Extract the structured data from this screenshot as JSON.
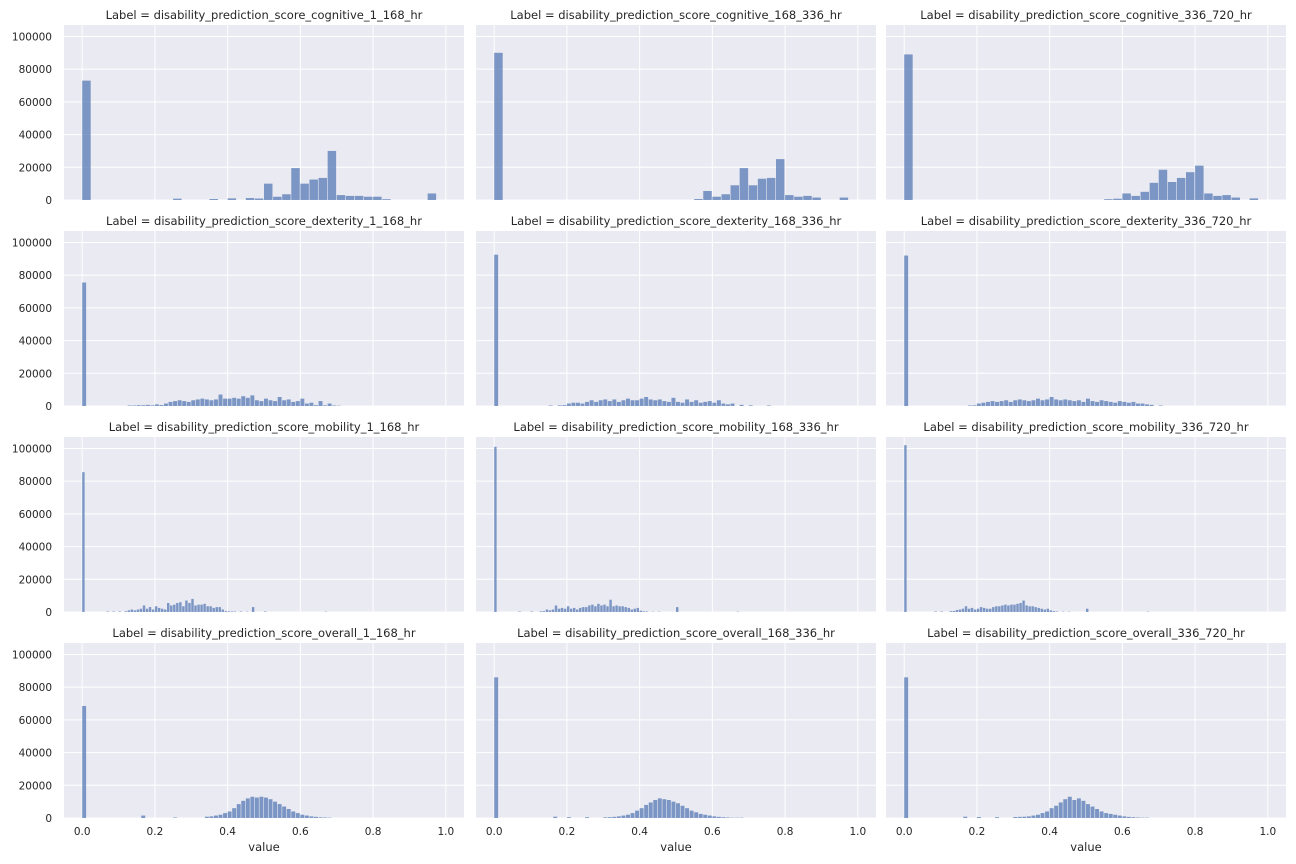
{
  "figure": {
    "facet_background": "#eaeaf2",
    "grid_color": "#ffffff",
    "bar_color": "#4c72b0",
    "bar_alpha": 0.7,
    "grid": true
  },
  "chart_data": [
    {
      "type": "bar",
      "title": "Label = disability_prediction_score_cognitive_1_168_hr",
      "xlabel": "",
      "ylabel": "",
      "xlim": [
        -0.05,
        1.05
      ],
      "ylim": [
        0,
        107000
      ],
      "xticks": [
        0.0,
        0.2,
        0.4,
        0.6,
        0.8,
        1.0
      ],
      "yticks": [
        0,
        20000,
        40000,
        60000,
        80000,
        100000
      ],
      "bin_width": 0.025,
      "x": [
        0.0,
        0.25,
        0.3,
        0.35,
        0.4,
        0.45,
        0.475,
        0.5,
        0.525,
        0.55,
        0.575,
        0.6,
        0.625,
        0.65,
        0.675,
        0.7,
        0.725,
        0.75,
        0.775,
        0.8,
        0.825,
        0.85,
        0.875,
        0.9,
        0.95
      ],
      "values": [
        73000,
        800,
        0,
        600,
        1000,
        1200,
        900,
        10000,
        2000,
        3500,
        19500,
        10000,
        12500,
        13500,
        30000,
        3000,
        2500,
        2500,
        2000,
        2000,
        500,
        0,
        0,
        0,
        4000
      ]
    },
    {
      "type": "bar",
      "title": "Label = disability_prediction_score_cognitive_168_336_hr",
      "xlabel": "",
      "ylabel": "",
      "xlim": [
        -0.05,
        1.05
      ],
      "ylim": [
        0,
        107000
      ],
      "xticks": [
        0.0,
        0.2,
        0.4,
        0.6,
        0.8,
        1.0
      ],
      "yticks": [
        0,
        20000,
        40000,
        60000,
        80000,
        100000
      ],
      "bin_width": 0.025,
      "x": [
        0.0,
        0.55,
        0.575,
        0.6,
        0.625,
        0.65,
        0.675,
        0.7,
        0.725,
        0.75,
        0.775,
        0.8,
        0.825,
        0.85,
        0.875,
        0.9,
        0.95
      ],
      "values": [
        90000,
        600,
        5500,
        2000,
        3500,
        9000,
        19500,
        9000,
        13000,
        13500,
        25000,
        3000,
        2000,
        2500,
        1500,
        0,
        1500
      ]
    },
    {
      "type": "bar",
      "title": "Label = disability_prediction_score_cognitive_336_720_hr",
      "xlabel": "",
      "ylabel": "",
      "xlim": [
        -0.05,
        1.05
      ],
      "ylim": [
        0,
        107000
      ],
      "xticks": [
        0.0,
        0.2,
        0.4,
        0.6,
        0.8,
        1.0
      ],
      "yticks": [
        0,
        20000,
        40000,
        60000,
        80000,
        100000
      ],
      "bin_width": 0.025,
      "x": [
        0.0,
        0.55,
        0.575,
        0.6,
        0.625,
        0.65,
        0.675,
        0.7,
        0.725,
        0.75,
        0.775,
        0.8,
        0.825,
        0.85,
        0.875,
        0.9,
        0.95
      ],
      "values": [
        89000,
        500,
        800,
        4000,
        2500,
        5000,
        10500,
        18500,
        11000,
        13500,
        17000,
        21000,
        4000,
        2500,
        3000,
        1500,
        1000
      ]
    },
    {
      "type": "bar",
      "title": "Label = disability_prediction_score_dexterity_1_168_hr",
      "xlabel": "",
      "ylabel": "",
      "xlim": [
        -0.05,
        1.05
      ],
      "ylim": [
        0,
        107000
      ],
      "xticks": [
        0.0,
        0.2,
        0.4,
        0.6,
        0.8,
        1.0
      ],
      "yticks": [
        0,
        20000,
        40000,
        60000,
        80000,
        100000
      ],
      "bin_width": 0.0125,
      "x": [
        0.0,
        0.125,
        0.1375,
        0.15,
        0.1625,
        0.175,
        0.1875,
        0.2,
        0.2125,
        0.225,
        0.2375,
        0.25,
        0.2625,
        0.275,
        0.2875,
        0.3,
        0.3125,
        0.325,
        0.3375,
        0.35,
        0.3625,
        0.375,
        0.3875,
        0.4,
        0.4125,
        0.425,
        0.4375,
        0.45,
        0.4625,
        0.475,
        0.4875,
        0.5,
        0.5125,
        0.525,
        0.5375,
        0.55,
        0.5625,
        0.575,
        0.5875,
        0.6,
        0.6125,
        0.625,
        0.6375,
        0.65,
        0.6625,
        0.675,
        0.6875,
        0.7
      ],
      "values": [
        75500,
        300,
        300,
        500,
        500,
        700,
        400,
        1000,
        600,
        1500,
        2500,
        3000,
        3500,
        3000,
        2500,
        3500,
        4000,
        4500,
        4000,
        3500,
        4000,
        7000,
        4500,
        4500,
        5000,
        4500,
        6000,
        5000,
        6500,
        3500,
        3000,
        4500,
        3500,
        3000,
        5500,
        3500,
        4000,
        2500,
        3000,
        4500,
        1500,
        2000,
        500,
        3000,
        400,
        1500,
        300,
        200
      ]
    },
    {
      "type": "bar",
      "title": "Label = disability_prediction_score_dexterity_168_336_hr",
      "xlabel": "",
      "ylabel": "",
      "xlim": [
        -0.05,
        1.05
      ],
      "ylim": [
        0,
        107000
      ],
      "xticks": [
        0.0,
        0.2,
        0.4,
        0.6,
        0.8,
        1.0
      ],
      "yticks": [
        0,
        20000,
        40000,
        60000,
        80000,
        100000
      ],
      "bin_width": 0.0125,
      "x": [
        0.0,
        0.15,
        0.175,
        0.1875,
        0.2,
        0.2125,
        0.225,
        0.2375,
        0.25,
        0.2625,
        0.275,
        0.2875,
        0.3,
        0.3125,
        0.325,
        0.3375,
        0.35,
        0.3625,
        0.375,
        0.3875,
        0.4,
        0.4125,
        0.425,
        0.4375,
        0.45,
        0.4625,
        0.475,
        0.4875,
        0.5,
        0.5125,
        0.525,
        0.5375,
        0.55,
        0.5625,
        0.575,
        0.5875,
        0.6,
        0.6125,
        0.625,
        0.6375,
        0.65,
        0.675,
        0.7,
        0.75
      ],
      "values": [
        92500,
        300,
        400,
        500,
        1500,
        2000,
        2000,
        1500,
        2500,
        3500,
        2500,
        3500,
        4000,
        3000,
        4000,
        2500,
        3500,
        4500,
        3500,
        3500,
        4500,
        5500,
        4000,
        3500,
        4000,
        3000,
        2500,
        5000,
        2500,
        2000,
        4000,
        2500,
        3500,
        2000,
        2500,
        3000,
        2000,
        3500,
        1500,
        1000,
        1500,
        700,
        400,
        300
      ]
    },
    {
      "type": "bar",
      "title": "Label = disability_prediction_score_dexterity_336_720_hr",
      "xlabel": "",
      "ylabel": "",
      "xlim": [
        -0.05,
        1.05
      ],
      "ylim": [
        0,
        107000
      ],
      "xticks": [
        0.0,
        0.2,
        0.4,
        0.6,
        0.8,
        1.0
      ],
      "yticks": [
        0,
        20000,
        40000,
        60000,
        80000,
        100000
      ],
      "bin_width": 0.0125,
      "x": [
        0.0,
        0.175,
        0.1875,
        0.2,
        0.2125,
        0.225,
        0.2375,
        0.25,
        0.2625,
        0.275,
        0.2875,
        0.3,
        0.3125,
        0.325,
        0.3375,
        0.35,
        0.3625,
        0.375,
        0.3875,
        0.4,
        0.4125,
        0.425,
        0.4375,
        0.45,
        0.4625,
        0.475,
        0.4875,
        0.5,
        0.5125,
        0.525,
        0.5375,
        0.55,
        0.5625,
        0.575,
        0.5875,
        0.6,
        0.6125,
        0.625,
        0.6375,
        0.65,
        0.6625,
        0.675,
        0.7
      ],
      "values": [
        92000,
        300,
        400,
        1500,
        2000,
        2500,
        3000,
        2500,
        3000,
        3500,
        2500,
        3500,
        4000,
        3500,
        3000,
        3500,
        4500,
        3500,
        4000,
        5500,
        4000,
        3500,
        4000,
        3500,
        3000,
        3500,
        2500,
        4500,
        3000,
        2500,
        3500,
        3000,
        2500,
        2000,
        3000,
        2500,
        2000,
        2500,
        1500,
        1500,
        1000,
        700,
        300
      ]
    },
    {
      "type": "bar",
      "title": "Label = disability_prediction_score_mobility_1_168_hr",
      "xlabel": "",
      "ylabel": "",
      "xlim": [
        -0.05,
        1.05
      ],
      "ylim": [
        0,
        107000
      ],
      "xticks": [
        0.0,
        0.2,
        0.4,
        0.6,
        0.8,
        1.0
      ],
      "yticks": [
        0,
        20000,
        40000,
        60000,
        80000,
        100000
      ],
      "bin_width": 0.00833,
      "x": [
        0.0,
        0.0667,
        0.0833,
        0.1,
        0.1167,
        0.125,
        0.1333,
        0.1417,
        0.15,
        0.1583,
        0.1667,
        0.175,
        0.1833,
        0.1917,
        0.2,
        0.2083,
        0.2167,
        0.225,
        0.2333,
        0.2417,
        0.25,
        0.2583,
        0.2667,
        0.275,
        0.2833,
        0.2917,
        0.3,
        0.3083,
        0.3167,
        0.325,
        0.3333,
        0.3417,
        0.35,
        0.3583,
        0.3667,
        0.375,
        0.3833,
        0.3917,
        0.4,
        0.4083,
        0.4167,
        0.4333,
        0.45,
        0.4667,
        0.5,
        0.6667
      ],
      "values": [
        85500,
        300,
        300,
        300,
        400,
        1000,
        1500,
        1000,
        1500,
        2000,
        4000,
        2000,
        3000,
        1500,
        3500,
        2500,
        2000,
        1500,
        5500,
        4000,
        4500,
        5500,
        6000,
        3500,
        7000,
        5500,
        8000,
        4000,
        4500,
        4500,
        5000,
        3500,
        3500,
        2500,
        3000,
        3000,
        1500,
        500,
        400,
        300,
        300,
        300,
        200,
        3000,
        300,
        200
      ]
    },
    {
      "type": "bar",
      "title": "Label = disability_prediction_score_mobility_168_336_hr",
      "xlabel": "",
      "ylabel": "",
      "xlim": [
        -0.05,
        1.05
      ],
      "ylim": [
        0,
        107000
      ],
      "xticks": [
        0.0,
        0.2,
        0.4,
        0.6,
        0.8,
        1.0
      ],
      "yticks": [
        0,
        20000,
        40000,
        60000,
        80000,
        100000
      ],
      "bin_width": 0.00833,
      "x": [
        0.0,
        0.0667,
        0.1,
        0.125,
        0.1333,
        0.1417,
        0.15,
        0.1583,
        0.1667,
        0.175,
        0.1833,
        0.1917,
        0.2,
        0.2083,
        0.2167,
        0.225,
        0.2333,
        0.2417,
        0.25,
        0.2583,
        0.2667,
        0.275,
        0.2833,
        0.2917,
        0.3,
        0.3083,
        0.3167,
        0.325,
        0.3333,
        0.3417,
        0.35,
        0.3583,
        0.3667,
        0.375,
        0.3833,
        0.3917,
        0.4,
        0.4083,
        0.4167,
        0.4333,
        0.45,
        0.5,
        0.6667
      ],
      "values": [
        101000,
        300,
        300,
        400,
        500,
        1500,
        1000,
        1500,
        4000,
        2000,
        2500,
        2000,
        3500,
        2000,
        2500,
        1500,
        2500,
        3000,
        3000,
        4000,
        4500,
        3500,
        5000,
        4000,
        4500,
        3500,
        7500,
        3500,
        4000,
        3500,
        3500,
        3000,
        2500,
        1500,
        2000,
        2500,
        800,
        400,
        300,
        200,
        200,
        3000,
        200
      ]
    },
    {
      "type": "bar",
      "title": "Label = disability_prediction_score_mobility_336_720_hr",
      "xlabel": "",
      "ylabel": "",
      "xlim": [
        -0.05,
        1.05
      ],
      "ylim": [
        0,
        107000
      ],
      "xticks": [
        0.0,
        0.2,
        0.4,
        0.6,
        0.8,
        1.0
      ],
      "yticks": [
        0,
        20000,
        40000,
        60000,
        80000,
        100000
      ],
      "bin_width": 0.00833,
      "x": [
        0.0,
        0.0833,
        0.1,
        0.125,
        0.1333,
        0.1417,
        0.15,
        0.1583,
        0.1667,
        0.175,
        0.1833,
        0.1917,
        0.2,
        0.2083,
        0.2167,
        0.225,
        0.2333,
        0.2417,
        0.25,
        0.2583,
        0.2667,
        0.275,
        0.2833,
        0.2917,
        0.3,
        0.3083,
        0.3167,
        0.325,
        0.3333,
        0.3417,
        0.35,
        0.3583,
        0.3667,
        0.375,
        0.3833,
        0.3917,
        0.4,
        0.4083,
        0.4167,
        0.4333,
        0.45,
        0.5,
        0.6667
      ],
      "values": [
        102000,
        300,
        300,
        500,
        600,
        1200,
        1500,
        2000,
        3500,
        2000,
        2500,
        1500,
        2000,
        3000,
        2500,
        2000,
        2000,
        3000,
        3500,
        3500,
        4000,
        4500,
        4000,
        4500,
        4500,
        5000,
        5500,
        7000,
        4000,
        3500,
        3500,
        3000,
        2500,
        2000,
        1500,
        2000,
        1000,
        500,
        300,
        200,
        200,
        2000,
        200
      ]
    },
    {
      "type": "bar",
      "title": "Label = disability_prediction_score_overall_1_168_hr",
      "xlabel": "value",
      "ylabel": "",
      "xlim": [
        -0.05,
        1.05
      ],
      "ylim": [
        0,
        107000
      ],
      "xticks": [
        0.0,
        0.2,
        0.4,
        0.6,
        0.8,
        1.0
      ],
      "yticks": [
        0,
        20000,
        40000,
        60000,
        80000,
        100000
      ],
      "bin_width": 0.0125,
      "x": [
        0.0,
        0.1625,
        0.25,
        0.3375,
        0.35,
        0.3625,
        0.375,
        0.3875,
        0.4,
        0.4125,
        0.425,
        0.4375,
        0.45,
        0.4625,
        0.475,
        0.4875,
        0.5,
        0.5125,
        0.525,
        0.5375,
        0.55,
        0.5625,
        0.575,
        0.5875,
        0.6,
        0.6125,
        0.625,
        0.6375,
        0.65,
        0.6625,
        0.675
      ],
      "values": [
        68500,
        1500,
        300,
        800,
        1000,
        1500,
        2000,
        3000,
        4000,
        6000,
        8500,
        10500,
        12000,
        13000,
        12500,
        13000,
        12500,
        11500,
        10000,
        8500,
        7000,
        5500,
        4000,
        3000,
        2000,
        1500,
        1000,
        700,
        400,
        300,
        200
      ]
    },
    {
      "type": "bar",
      "title": "Label = disability_prediction_score_overall_168_336_hr",
      "xlabel": "value",
      "ylabel": "",
      "xlim": [
        -0.05,
        1.05
      ],
      "ylim": [
        0,
        107000
      ],
      "xticks": [
        0.0,
        0.2,
        0.4,
        0.6,
        0.8,
        1.0
      ],
      "yticks": [
        0,
        20000,
        40000,
        60000,
        80000,
        100000
      ],
      "bin_width": 0.0125,
      "x": [
        0.0,
        0.1625,
        0.2,
        0.25,
        0.3,
        0.3125,
        0.325,
        0.3375,
        0.35,
        0.3625,
        0.375,
        0.3875,
        0.4,
        0.4125,
        0.425,
        0.4375,
        0.45,
        0.4625,
        0.475,
        0.4875,
        0.5,
        0.5125,
        0.525,
        0.5375,
        0.55,
        0.5625,
        0.575,
        0.5875,
        0.6,
        0.6125,
        0.625,
        0.6375,
        0.65,
        0.6625,
        0.675
      ],
      "values": [
        86000,
        800,
        500,
        500,
        400,
        500,
        700,
        1000,
        1500,
        2000,
        3000,
        4500,
        6000,
        8000,
        9500,
        11000,
        12000,
        11500,
        11000,
        10000,
        9000,
        7500,
        6000,
        4500,
        3500,
        2500,
        2000,
        1500,
        1000,
        700,
        500,
        300,
        200,
        200,
        200
      ]
    },
    {
      "type": "bar",
      "title": "Label = disability_prediction_score_overall_336_720_hr",
      "xlabel": "value",
      "ylabel": "",
      "xlim": [
        -0.05,
        1.05
      ],
      "ylim": [
        0,
        107000
      ],
      "xticks": [
        0.0,
        0.2,
        0.4,
        0.6,
        0.8,
        1.0
      ],
      "yticks": [
        0,
        20000,
        40000,
        60000,
        80000,
        100000
      ],
      "bin_width": 0.0125,
      "x": [
        0.0,
        0.1625,
        0.2,
        0.25,
        0.3,
        0.3125,
        0.325,
        0.3375,
        0.35,
        0.3625,
        0.375,
        0.3875,
        0.4,
        0.4125,
        0.425,
        0.4375,
        0.45,
        0.4625,
        0.475,
        0.4875,
        0.5,
        0.5125,
        0.525,
        0.5375,
        0.55,
        0.5625,
        0.575,
        0.5875,
        0.6,
        0.6125,
        0.625,
        0.6375,
        0.65,
        0.6625
      ],
      "values": [
        86000,
        800,
        600,
        500,
        600,
        700,
        800,
        1000,
        1500,
        2000,
        3000,
        4000,
        6000,
        7500,
        9500,
        11500,
        13000,
        11000,
        12000,
        10500,
        8500,
        7000,
        5500,
        4000,
        3000,
        2500,
        2000,
        1500,
        1000,
        700,
        500,
        300,
        200,
        200
      ]
    }
  ]
}
